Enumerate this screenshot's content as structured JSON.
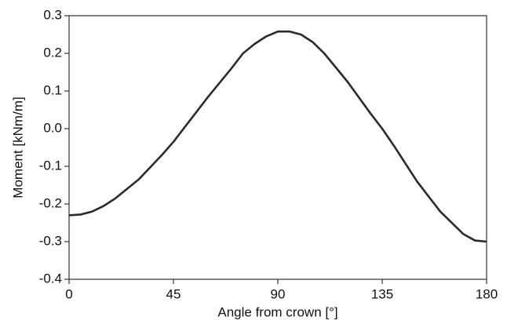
{
  "chart_data": {
    "type": "line",
    "xlabel": "Angle from crown [°]",
    "ylabel": "Moment [kNm/m]",
    "x": [
      0,
      5,
      10,
      15,
      20,
      30,
      40,
      45,
      50,
      60,
      70,
      75,
      80,
      85,
      90,
      95,
      100,
      105,
      110,
      120,
      130,
      135,
      140,
      150,
      160,
      170,
      175,
      180
    ],
    "series": [
      {
        "name": "Moment",
        "color": "#2b2b2b",
        "values": [
          -0.23,
          -0.228,
          -0.22,
          -0.205,
          -0.185,
          -0.135,
          -0.07,
          -0.035,
          0.005,
          0.085,
          0.16,
          0.2,
          0.225,
          0.245,
          0.258,
          0.258,
          0.25,
          0.23,
          0.2,
          0.125,
          0.04,
          0.0,
          -0.045,
          -0.14,
          -0.22,
          -0.28,
          -0.297,
          -0.3
        ]
      }
    ],
    "xlim": [
      0,
      180
    ],
    "xticks": [
      0,
      45,
      90,
      135,
      180
    ],
    "ylim": [
      -0.4,
      0.3
    ],
    "yticks": [
      -0.4,
      -0.3,
      -0.2,
      -0.1,
      {
        "value": 0,
        "label": "0.0"
      },
      0.1,
      0.2,
      0.3
    ]
  }
}
